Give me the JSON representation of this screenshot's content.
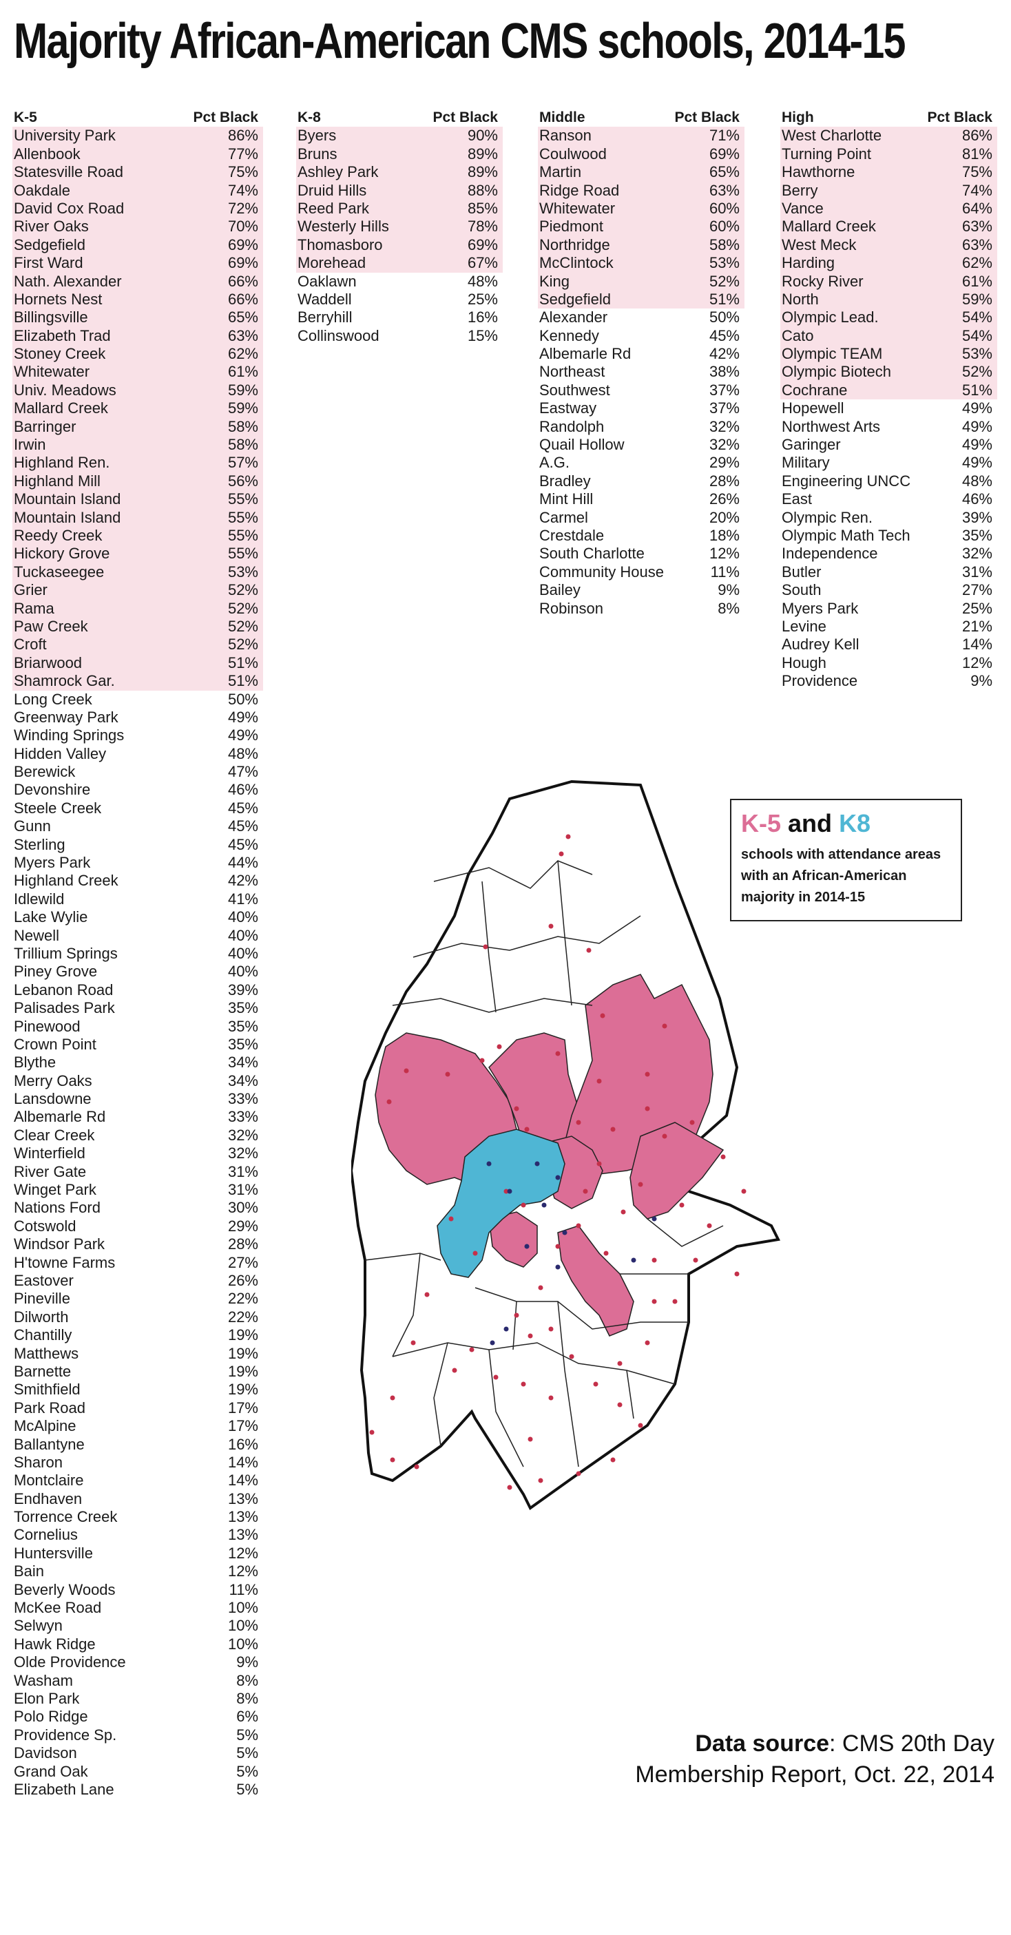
{
  "title": "Majority African-American CMS schools, 2014-15",
  "colors": {
    "k5_fill": "#dc6e96",
    "k8_fill": "#4fb6d4",
    "highlight": "#f9e1e7",
    "school_dot": "#c4304a",
    "k8_dot": "#2a2a6e"
  },
  "tables": {
    "k5": {
      "header": "K-5",
      "pct_header": "Pct Black",
      "highlighted_count": 31,
      "rows": [
        [
          "University Park",
          "86%"
        ],
        [
          "Allenbook",
          "77%"
        ],
        [
          "Statesville Road",
          "75%"
        ],
        [
          "Oakdale",
          "74%"
        ],
        [
          "David Cox Road",
          "72%"
        ],
        [
          "River Oaks",
          "70%"
        ],
        [
          "Sedgefield",
          "69%"
        ],
        [
          "First Ward",
          "69%"
        ],
        [
          "Nath. Alexander",
          "66%"
        ],
        [
          "Hornets Nest",
          "66%"
        ],
        [
          "Billingsville",
          "65%"
        ],
        [
          "Elizabeth Trad",
          "63%"
        ],
        [
          "Stoney Creek",
          "62%"
        ],
        [
          "Whitewater",
          "61%"
        ],
        [
          "Univ. Meadows",
          "59%"
        ],
        [
          "Mallard Creek",
          "59%"
        ],
        [
          "Barringer",
          "58%"
        ],
        [
          "Irwin",
          "58%"
        ],
        [
          "Highland Ren.",
          "57%"
        ],
        [
          "Highland Mill",
          "56%"
        ],
        [
          "Mountain Island",
          "55%"
        ],
        [
          "Mountain Island",
          "55%"
        ],
        [
          "Reedy Creek",
          "55%"
        ],
        [
          "Hickory Grove",
          "55%"
        ],
        [
          "Tuckaseegee",
          "53%"
        ],
        [
          "Grier",
          "52%"
        ],
        [
          "Rama",
          "52%"
        ],
        [
          "Paw Creek",
          "52%"
        ],
        [
          "Croft",
          "52%"
        ],
        [
          "Briarwood",
          "51%"
        ],
        [
          "Shamrock Gar.",
          "51%"
        ],
        [
          "Long Creek",
          "50%"
        ],
        [
          "Greenway Park",
          "49%"
        ],
        [
          "Winding Springs",
          "49%"
        ],
        [
          "Hidden Valley",
          "48%"
        ],
        [
          "Berewick",
          "47%"
        ],
        [
          "Devonshire",
          "46%"
        ],
        [
          "Steele Creek",
          "45%"
        ],
        [
          "Gunn",
          "45%"
        ],
        [
          "Sterling",
          "45%"
        ],
        [
          "Myers Park",
          "44%"
        ],
        [
          "Highland Creek",
          "42%"
        ],
        [
          "Idlewild",
          "41%"
        ],
        [
          "Lake Wylie",
          "40%"
        ],
        [
          "Newell",
          "40%"
        ],
        [
          "Trillium Springs",
          "40%"
        ],
        [
          "Piney Grove",
          "40%"
        ],
        [
          "Lebanon Road",
          "39%"
        ],
        [
          "Palisades Park",
          "35%"
        ],
        [
          "Pinewood",
          "35%"
        ],
        [
          "Crown Point",
          "35%"
        ],
        [
          "Blythe",
          "34%"
        ],
        [
          "Merry Oaks",
          "34%"
        ],
        [
          "Lansdowne",
          "33%"
        ],
        [
          "Albemarle Rd",
          "33%"
        ],
        [
          "Clear Creek",
          "32%"
        ],
        [
          "Winterfield",
          "32%"
        ],
        [
          "River Gate",
          "31%"
        ],
        [
          "Winget Park",
          "31%"
        ],
        [
          "Nations Ford",
          "30%"
        ],
        [
          "Cotswold",
          "29%"
        ],
        [
          "Windsor Park",
          "28%"
        ],
        [
          "H'towne Farms",
          "27%"
        ],
        [
          "Eastover",
          "26%"
        ],
        [
          "Pineville",
          "22%"
        ],
        [
          "Dilworth",
          "22%"
        ],
        [
          "Chantilly",
          "19%"
        ],
        [
          "Matthews",
          "19%"
        ],
        [
          "Barnette",
          "19%"
        ],
        [
          "Smithfield",
          "19%"
        ],
        [
          "Park Road",
          "17%"
        ],
        [
          "McAlpine",
          "17%"
        ],
        [
          "Ballantyne",
          "16%"
        ],
        [
          "Sharon",
          "14%"
        ],
        [
          "Montclaire",
          "14%"
        ],
        [
          "Endhaven",
          "13%"
        ],
        [
          "Torrence Creek",
          "13%"
        ],
        [
          "Cornelius",
          "13%"
        ],
        [
          "Huntersville",
          "12%"
        ],
        [
          "Bain",
          "12%"
        ],
        [
          "Beverly Woods",
          "11%"
        ],
        [
          "McKee Road",
          "10%"
        ],
        [
          "Selwyn",
          "10%"
        ],
        [
          "Hawk Ridge",
          "10%"
        ],
        [
          "Olde Providence",
          "9%"
        ],
        [
          "Washam",
          "8%"
        ],
        [
          "Elon Park",
          "8%"
        ],
        [
          "Polo Ridge",
          "6%"
        ],
        [
          "Providence Sp.",
          "5%"
        ],
        [
          "Davidson",
          "5%"
        ],
        [
          "Grand Oak",
          "5%"
        ],
        [
          "Elizabeth Lane",
          "5%"
        ]
      ]
    },
    "k8": {
      "header": "K-8",
      "pct_header": "Pct Black",
      "highlighted_count": 8,
      "rows": [
        [
          "Byers",
          "90%"
        ],
        [
          "Bruns",
          "89%"
        ],
        [
          "Ashley Park",
          "89%"
        ],
        [
          "Druid Hills",
          "88%"
        ],
        [
          "Reed Park",
          "85%"
        ],
        [
          "Westerly Hills",
          "78%"
        ],
        [
          "Thomasboro",
          "69%"
        ],
        [
          "Morehead",
          "67%"
        ],
        [
          "Oaklawn",
          "48%"
        ],
        [
          "Waddell",
          "25%"
        ],
        [
          "Berryhill",
          "16%"
        ],
        [
          "Collinswood",
          "15%"
        ]
      ]
    },
    "middle": {
      "header": "Middle",
      "pct_header": "Pct Black",
      "highlighted_count": 10,
      "rows": [
        [
          "Ranson",
          "71%"
        ],
        [
          "Coulwood",
          "69%"
        ],
        [
          "Martin",
          "65%"
        ],
        [
          "Ridge Road",
          "63%"
        ],
        [
          "Whitewater",
          "60%"
        ],
        [
          "Piedmont",
          "60%"
        ],
        [
          "Northridge",
          "58%"
        ],
        [
          "McClintock",
          "53%"
        ],
        [
          "King",
          "52%"
        ],
        [
          "Sedgefield",
          "51%"
        ],
        [
          "Alexander",
          "50%"
        ],
        [
          "Kennedy",
          "45%"
        ],
        [
          "Albemarle Rd",
          "42%"
        ],
        [
          "Northeast",
          "38%"
        ],
        [
          "Southwest",
          "37%"
        ],
        [
          "Eastway",
          "37%"
        ],
        [
          "Randolph",
          "32%"
        ],
        [
          "Quail Hollow",
          "32%"
        ],
        [
          "A.G.",
          "29%"
        ],
        [
          "Bradley",
          "28%"
        ],
        [
          "Mint Hill",
          "26%"
        ],
        [
          "Carmel",
          "20%"
        ],
        [
          "Crestdale",
          "18%"
        ],
        [
          "South Charlotte",
          "12%"
        ],
        [
          "Community House",
          "11%"
        ],
        [
          "Bailey",
          "9%"
        ],
        [
          "Robinson",
          "8%"
        ]
      ]
    },
    "high": {
      "header": "High",
      "pct_header": "Pct Black",
      "highlighted_count": 15,
      "rows": [
        [
          "West Charlotte",
          "86%"
        ],
        [
          "Turning Point",
          "81%"
        ],
        [
          "Hawthorne",
          "75%"
        ],
        [
          "Berry",
          "74%"
        ],
        [
          "Vance",
          "64%"
        ],
        [
          "Mallard Creek",
          "63%"
        ],
        [
          "West Meck",
          "63%"
        ],
        [
          "Harding",
          "62%"
        ],
        [
          "Rocky River",
          "61%"
        ],
        [
          "North",
          "59%"
        ],
        [
          "Olympic Lead.",
          "54%"
        ],
        [
          "Cato",
          "54%"
        ],
        [
          "Olympic TEAM",
          "53%"
        ],
        [
          "Olympic Biotech",
          "52%"
        ],
        [
          "Cochrane",
          "51%"
        ],
        [
          "Hopewell",
          "49%"
        ],
        [
          "Northwest Arts",
          "49%"
        ],
        [
          "Garinger",
          "49%"
        ],
        [
          "Military",
          "49%"
        ],
        [
          "Engineering UNCC",
          "48%"
        ],
        [
          "East",
          "46%"
        ],
        [
          "Olympic Ren.",
          "39%"
        ],
        [
          "Olympic Math Tech",
          "35%"
        ],
        [
          "Independence",
          "32%"
        ],
        [
          "Butler",
          "31%"
        ],
        [
          "South",
          "27%"
        ],
        [
          "Myers Park",
          "25%"
        ],
        [
          "Levine",
          "21%"
        ],
        [
          "Audrey Kell",
          "14%"
        ],
        [
          "Hough",
          "12%"
        ],
        [
          "Providence",
          "9%"
        ]
      ]
    }
  },
  "legend": {
    "k5": "K-5",
    "and": "and",
    "k8": "K8",
    "lines": [
      "schools with attendance areas",
      "with an African-American",
      "majority in 2014-15"
    ]
  },
  "source": {
    "bold": "Data source",
    "rest": ": CMS 20th Day",
    "line2": "Membership Report, Oct. 22, 2014"
  }
}
